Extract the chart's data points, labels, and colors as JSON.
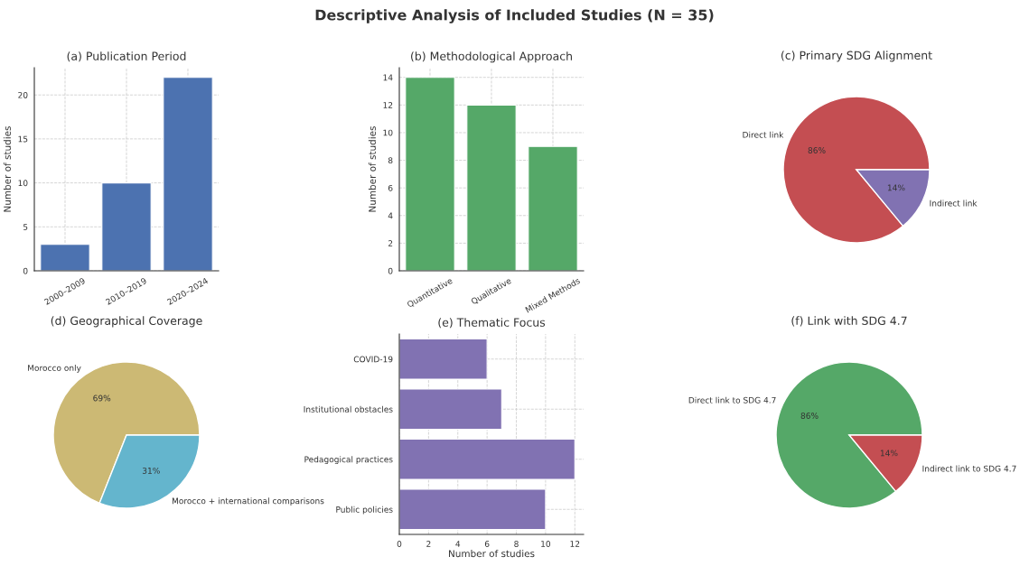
{
  "chart_data": [
    {
      "type": "bar",
      "title": "(a) Publication Period",
      "categories": [
        "2000–2009",
        "2010–2019",
        "2020–2024"
      ],
      "values": [
        3,
        10,
        22
      ],
      "color": "#4c72b0",
      "ylabel": "Number of studies",
      "ylim": [
        0,
        23.1
      ],
      "yticks": [
        0,
        5,
        10,
        15,
        20
      ],
      "grid": true,
      "annotations": [
        "Descriptive Analysis of Included Studies (N = 35)"
      ]
    },
    {
      "type": "bar",
      "title": "(b) Methodological Approach",
      "categories": [
        "Quantitative",
        "Qualitative",
        "Mixed Methods"
      ],
      "values": [
        14,
        12,
        9
      ],
      "color": "#55a868",
      "ylabel": "Number of studies",
      "ylim": [
        0,
        14.7
      ],
      "yticks": [
        0,
        2,
        4,
        6,
        8,
        10,
        12,
        14
      ],
      "grid": true
    },
    {
      "type": "pie",
      "title": "(c) Primary SDG Alignment",
      "categories": [
        "Direct link",
        "Indirect link"
      ],
      "values": [
        86,
        14
      ],
      "colors": [
        "#c44e52",
        "#8172b2"
      ],
      "value_labels": [
        "86%",
        "14%"
      ]
    },
    {
      "type": "pie",
      "title": "(d) Geographical Coverage",
      "categories": [
        "Morocco only",
        "Morocco + international comparisons"
      ],
      "values": [
        69,
        31
      ],
      "colors": [
        "#ccb974",
        "#64b5cd"
      ],
      "value_labels": [
        "69%",
        "31%"
      ]
    },
    {
      "type": "bar",
      "orientation": "horizontal",
      "title": "(e) Thematic Focus",
      "categories": [
        "COVID-19",
        "Institutional obstacles",
        "Pedagogical practices",
        "Public policies"
      ],
      "values": [
        6,
        7,
        12,
        10
      ],
      "color": "#8172b2",
      "xlabel": "Number of studies",
      "xlim": [
        0,
        12.6
      ],
      "xticks": [
        0,
        2,
        4,
        6,
        8,
        10,
        12
      ],
      "grid": true
    },
    {
      "type": "pie",
      "title": "(f) Link with SDG 4.7",
      "categories": [
        "Direct link to SDG 4.7",
        "Indirect link to SDG 4.7"
      ],
      "values": [
        86,
        14
      ],
      "colors": [
        "#55a868",
        "#c44e52"
      ],
      "value_labels": [
        "86%",
        "14%"
      ]
    }
  ]
}
